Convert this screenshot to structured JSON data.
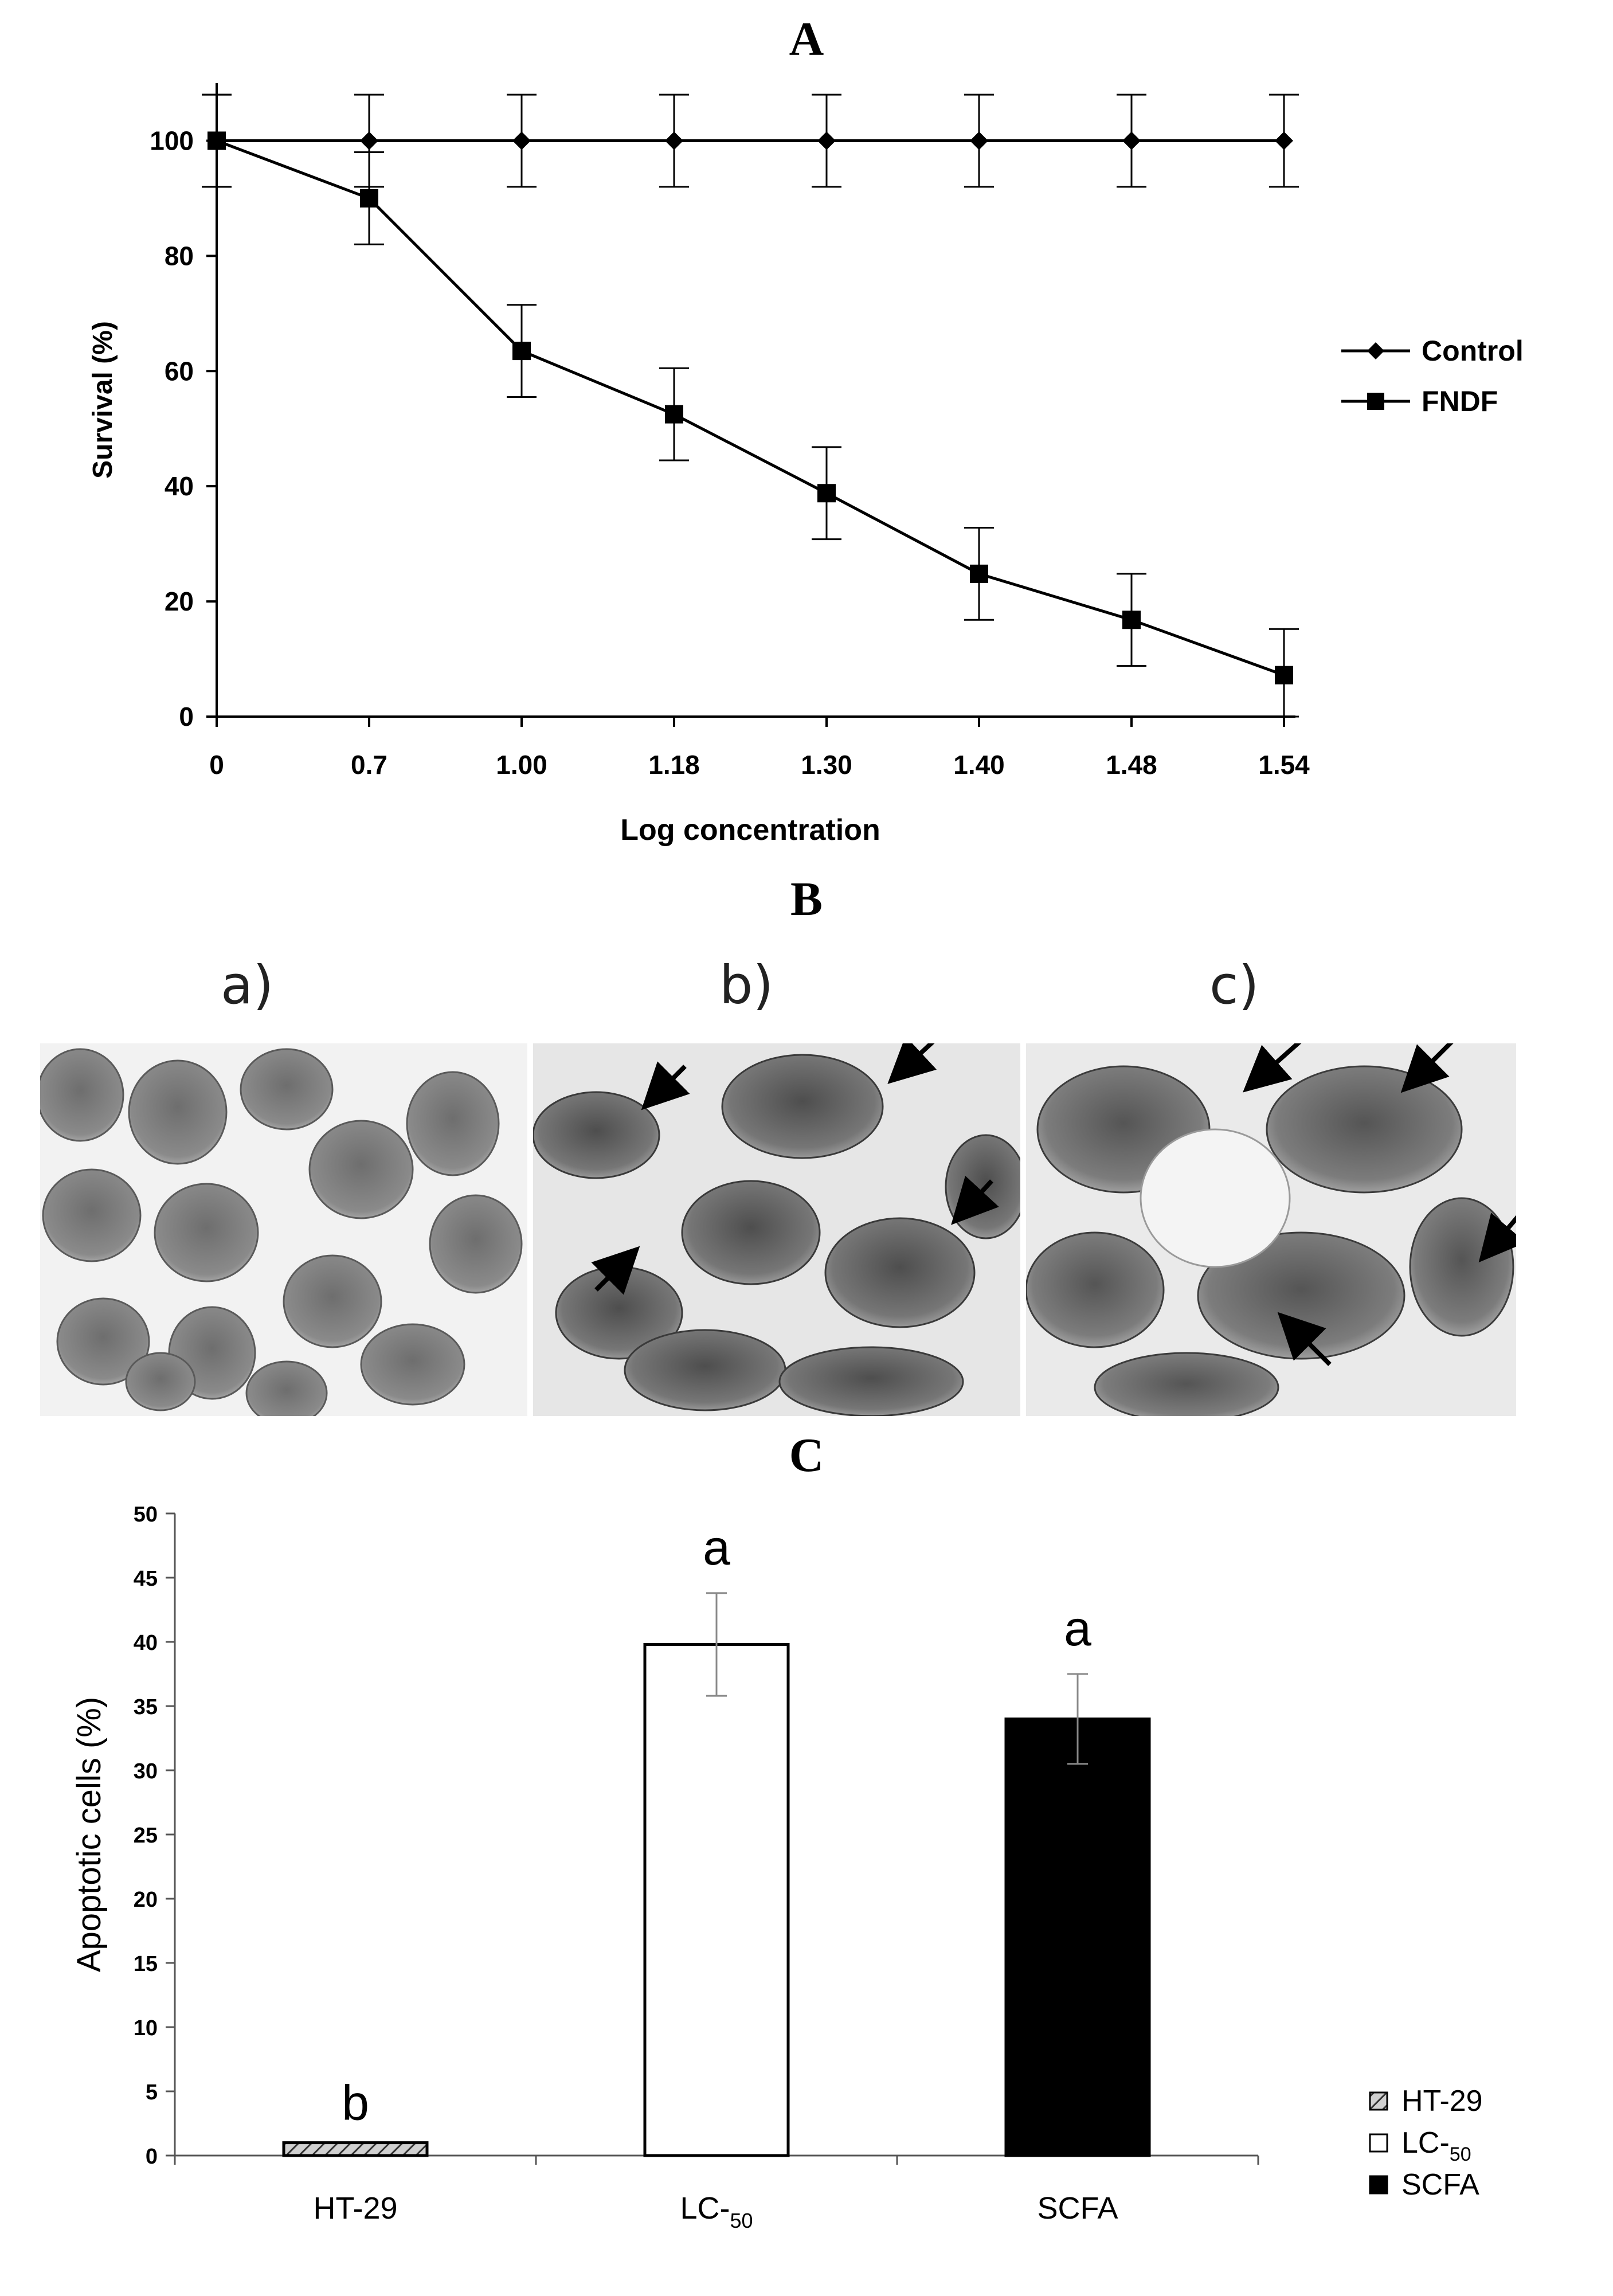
{
  "panel_a": {
    "letter": "A"
  },
  "panel_b": {
    "letter": "B",
    "sub_labels": [
      "a)",
      "b)",
      "c)"
    ]
  },
  "panel_c": {
    "letter": "C"
  },
  "chart_data": [
    {
      "type": "line",
      "title": "",
      "xlabel": "Log concentration",
      "ylabel": "Survival (%)",
      "x_categories": [
        "0",
        "0.7",
        "1.00",
        "1.18",
        "1.30",
        "1.40",
        "1.48",
        "1.54"
      ],
      "ylim": [
        0,
        110
      ],
      "y_ticks": [
        "0",
        "20",
        "40",
        "60",
        "80",
        "100"
      ],
      "legend_position": "right",
      "grid": false,
      "series": [
        {
          "name": "Control",
          "marker": "diamond",
          "values": [
            100,
            100,
            100,
            100,
            100,
            100,
            100,
            100
          ],
          "errors": [
            8,
            8,
            8,
            8,
            8,
            8,
            8,
            8
          ]
        },
        {
          "name": "FNDF",
          "marker": "square",
          "values": [
            100,
            90,
            63.5,
            52.5,
            38.8,
            24.8,
            16.8,
            7.2
          ],
          "errors": [
            8,
            8,
            8,
            8,
            8,
            8,
            8,
            8
          ]
        }
      ]
    },
    {
      "type": "bar",
      "title": "",
      "xlabel": "",
      "ylabel": "Apoptotic cells (%)",
      "categories": [
        {
          "base": "HT-29",
          "sub": ""
        },
        {
          "base": "LC-",
          "sub": "50"
        },
        {
          "base": "SCFA",
          "sub": ""
        }
      ],
      "values": [
        1,
        39.8,
        34
      ],
      "errors": [
        0,
        4,
        3.5
      ],
      "significance": [
        "b",
        "a",
        "a"
      ],
      "ylim": [
        0,
        50
      ],
      "y_ticks": [
        "0",
        "5",
        "10",
        "15",
        "20",
        "25",
        "30",
        "35",
        "40",
        "45",
        "50"
      ],
      "legend_position": "right",
      "legend": [
        {
          "base": "HT-29",
          "sub": "",
          "fill": "hatched"
        },
        {
          "base": "LC-",
          "sub": "50",
          "fill": "white"
        },
        {
          "base": "SCFA",
          "sub": "",
          "fill": "black"
        }
      ],
      "colors": {
        "ht29": "#9a9a9a",
        "lc50": "#ffffff",
        "scfa": "#000000"
      }
    }
  ]
}
